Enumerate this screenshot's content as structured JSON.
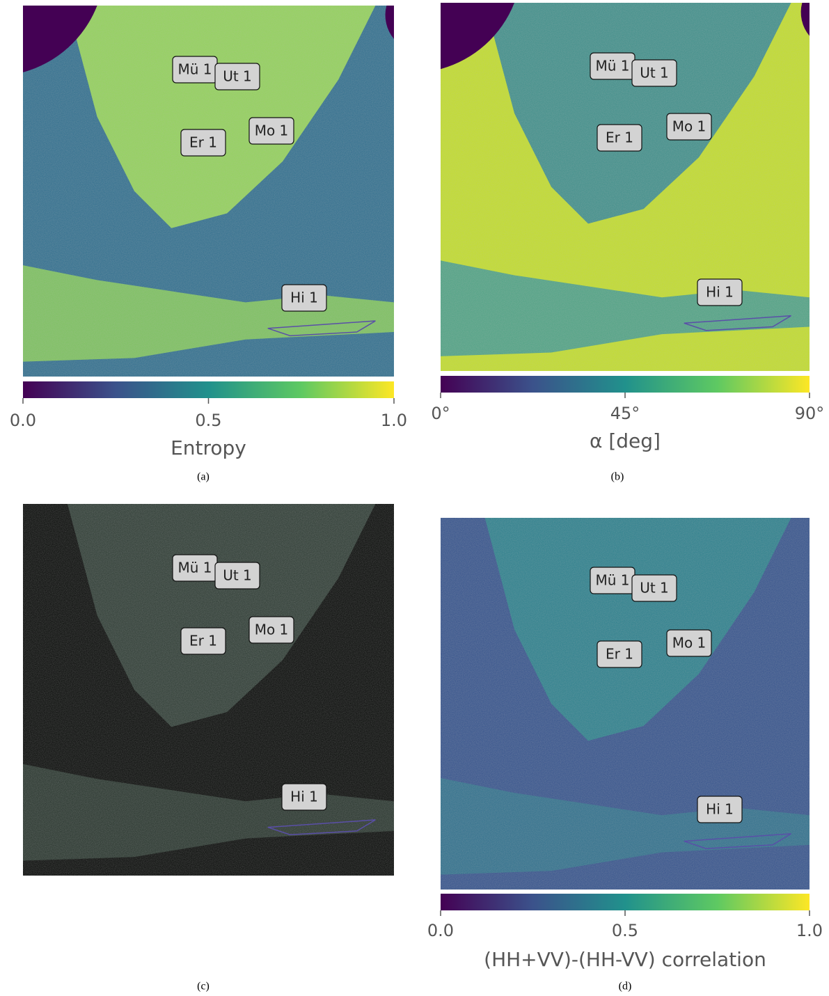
{
  "panels": [
    {
      "caption": "(a)",
      "labels": [
        "Mü 1",
        "Ut 1",
        "Mo 1",
        "Er 1",
        "Hi 1"
      ],
      "colorbar": {
        "label": "Entropy",
        "lim": [
          0,
          1
        ],
        "ticks": [
          {
            "value": 0,
            "label": "0.0"
          },
          {
            "value": 0.5,
            "label": "0.5"
          },
          {
            "value": 1,
            "label": "1.0"
          }
        ]
      }
    },
    {
      "caption": "(b)",
      "labels": [
        "Mü 1",
        "Ut 1",
        "Mo 1",
        "Er 1",
        "Hi 1"
      ],
      "colorbar": {
        "label": "α [deg]",
        "lim": [
          0,
          90
        ],
        "ticks": [
          {
            "value": 0,
            "label": "0°"
          },
          {
            "value": 45,
            "label": "45°"
          },
          {
            "value": 90,
            "label": "90°"
          }
        ]
      }
    },
    {
      "caption": "(c)",
      "labels": [
        "Mü 1",
        "Ut 1",
        "Mo 1",
        "Er 1",
        "Hi 1"
      ]
    },
    {
      "caption": "(d)",
      "labels": [
        "Mü 1",
        "Ut 1",
        "Mo 1",
        "Er 1",
        "Hi 1"
      ],
      "colorbar": {
        "label": "(HH+VV)-(HH-VV) correlation",
        "lim": [
          0,
          1
        ],
        "ticks": [
          {
            "value": 0,
            "label": "0.0"
          },
          {
            "value": 0.5,
            "label": "0.5"
          },
          {
            "value": 1,
            "label": "1.0"
          }
        ]
      }
    }
  ]
}
